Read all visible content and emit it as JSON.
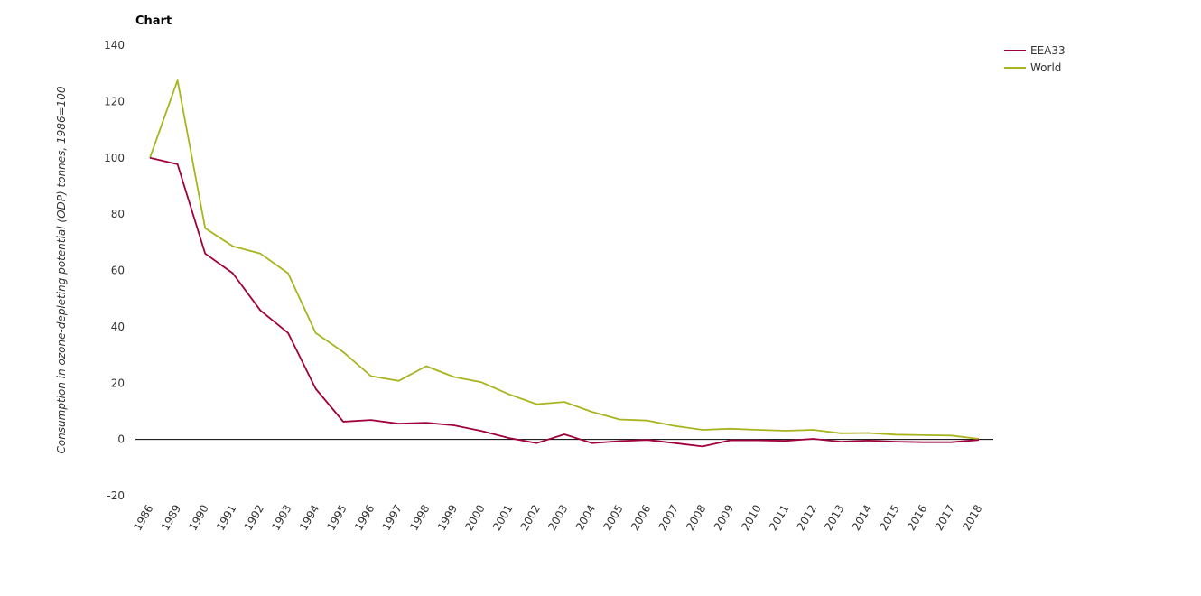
{
  "chart_data": {
    "type": "line",
    "title": "Chart",
    "xlabel": "",
    "ylabel": "Consumption in ozone-depleting potential (ODP) tonnes, 1986=100",
    "ylim": [
      -20,
      140
    ],
    "yticks": [
      -20,
      0,
      20,
      40,
      60,
      80,
      100,
      120,
      140
    ],
    "grid": false,
    "legend_position": "top-right",
    "categories": [
      "1986",
      "1989",
      "1990",
      "1991",
      "1992",
      "1993",
      "1994",
      "1995",
      "1996",
      "1997",
      "1998",
      "1999",
      "2000",
      "2001",
      "2002",
      "2003",
      "2004",
      "2005",
      "2006",
      "2007",
      "2008",
      "2009",
      "2010",
      "2011",
      "2012",
      "2013",
      "2014",
      "2015",
      "2016",
      "2017",
      "2018"
    ],
    "series": [
      {
        "name": "EEA33",
        "color": "#a0003c",
        "values": [
          100,
          97.7,
          66,
          59,
          45.8,
          37.8,
          18,
          6.3,
          6.9,
          5.6,
          5.9,
          5,
          3,
          0.5,
          -1.3,
          1.8,
          -1.3,
          -0.6,
          -0.2,
          -1.3,
          -2.5,
          -0.3,
          -0.3,
          -0.5,
          0.2,
          -0.8,
          -0.4,
          -0.8,
          -1,
          -1,
          -0.2
        ]
      },
      {
        "name": "World",
        "color": "#a8b41e",
        "values": [
          100,
          127.5,
          75,
          68.6,
          66,
          59,
          37.8,
          31,
          22.5,
          20.8,
          26,
          22.2,
          20.3,
          16,
          12.5,
          13.3,
          9.8,
          7.1,
          6.7,
          4.8,
          3.4,
          3.8,
          3.4,
          3.1,
          3.4,
          2.2,
          2.3,
          1.7,
          1.5,
          1.4,
          0.2
        ]
      }
    ]
  }
}
